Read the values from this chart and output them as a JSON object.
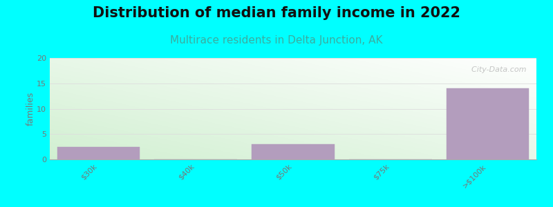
{
  "title": "Distribution of median family income in 2022",
  "subtitle": "Multirace residents in Delta Junction, AK",
  "categories": [
    "$30k",
    "$40k",
    "$50k",
    "$75k",
    ">$100k"
  ],
  "values": [
    2.5,
    0,
    3.0,
    0,
    14.0
  ],
  "bar_color": "#b39dbd",
  "bar_edge_color": "#b39dbd",
  "background_color": "#00ffff",
  "plot_bg_green": "#d4f0d4",
  "plot_bg_white": "#ffffff",
  "ylabel": "families",
  "ylim": [
    0,
    20
  ],
  "yticks": [
    0,
    5,
    10,
    15,
    20
  ],
  "title_fontsize": 15,
  "subtitle_fontsize": 11,
  "subtitle_color": "#3aada0",
  "watermark": "  City-Data.com",
  "grid_color": "#dddddd",
  "tick_color": "#777777",
  "tick_fontsize": 8
}
